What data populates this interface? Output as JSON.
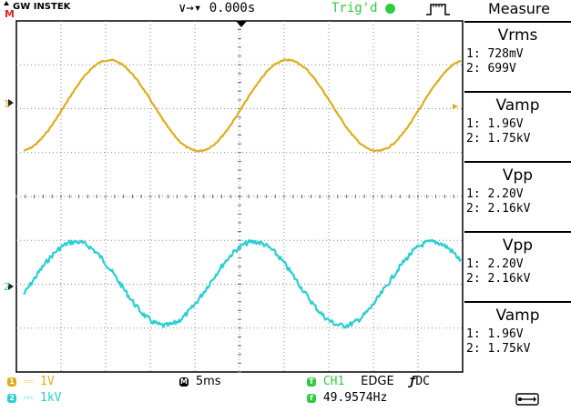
{
  "header": {
    "brand": "GW INSTEK",
    "mode": "M",
    "time_position": "∨→▾ 0.000s",
    "trigger_status": "Trig'd"
  },
  "measure": {
    "title": "Measure",
    "items": [
      {
        "name": "Vrms",
        "ch1": "1: 728mV",
        "ch2": "2: 699V"
      },
      {
        "name": "Vamp",
        "ch1": "1: 1.96V",
        "ch2": "2: 1.75kV"
      },
      {
        "name": "Vpp",
        "ch1": "1: 2.20V",
        "ch2": "2: 2.16kV"
      },
      {
        "name": "Vpp",
        "ch1": "1: 2.20V",
        "ch2": "2: 2.16kV"
      },
      {
        "name": "Vamp",
        "ch1": "1: 1.96V",
        "ch2": "2: 1.75kV"
      }
    ]
  },
  "channels": [
    {
      "label": "1",
      "scale": "1V",
      "color": "#e0ac1b"
    },
    {
      "label": "2",
      "scale": "1kV",
      "color": "#29cfd4"
    }
  ],
  "footer": {
    "timebase": "5ms",
    "trigger_source": "CH1",
    "trigger_type": "EDGE",
    "trigger_coupling": "DC",
    "frequency": "49.9574Hz",
    "timebase_badge": "M",
    "trigger_badge": "T",
    "freq_badge": "f"
  },
  "waveforms": {
    "ch1_period_ms": 20,
    "ch2_period_ms": 20,
    "timebase_ms_per_div": 5
  },
  "icons": {
    "trigger_edge": "rising-edge-pulse-icon",
    "usb": "usb-icon"
  }
}
